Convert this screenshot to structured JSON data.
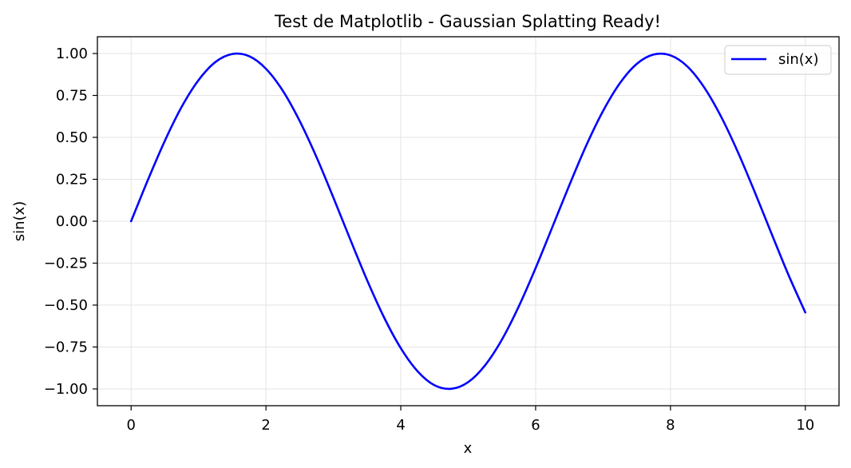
{
  "chart_data": {
    "type": "line",
    "title": "Test de Matplotlib - Gaussian Splatting Ready!",
    "xlabel": "x",
    "ylabel": "sin(x)",
    "xlim": [
      -0.5,
      10.5
    ],
    "ylim": [
      -1.1,
      1.1
    ],
    "xticks": [
      0,
      2,
      4,
      6,
      8,
      10
    ],
    "xtick_labels": [
      "0",
      "2",
      "4",
      "6",
      "8",
      "10"
    ],
    "yticks": [
      -1.0,
      -0.75,
      -0.5,
      -0.25,
      0.0,
      0.25,
      0.5,
      0.75,
      1.0
    ],
    "ytick_labels": [
      "−1.00",
      "−0.75",
      "−0.50",
      "−0.25",
      "0.00",
      "0.25",
      "0.50",
      "0.75",
      "1.00"
    ],
    "grid": true,
    "legend_position": "top-right",
    "series": [
      {
        "name": "sin(x)",
        "color": "#0000ff",
        "x": [
          0,
          0.25,
          0.5,
          0.75,
          1.0,
          1.25,
          1.5,
          1.75,
          2.0,
          2.25,
          2.5,
          2.75,
          3.0,
          3.25,
          3.5,
          3.75,
          4.0,
          4.25,
          4.5,
          4.75,
          5.0,
          5.25,
          5.5,
          5.75,
          6.0,
          6.25,
          6.5,
          6.75,
          7.0,
          7.25,
          7.5,
          7.75,
          8.0,
          8.25,
          8.5,
          8.75,
          9.0,
          9.25,
          9.5,
          9.75,
          10.0
        ],
        "y": [
          0.0,
          0.247,
          0.479,
          0.682,
          0.841,
          0.949,
          0.997,
          0.984,
          0.909,
          0.778,
          0.598,
          0.382,
          0.141,
          -0.108,
          -0.351,
          -0.572,
          -0.757,
          -0.895,
          -0.978,
          -0.999,
          -0.959,
          -0.859,
          -0.706,
          -0.508,
          -0.279,
          -0.033,
          0.215,
          0.451,
          0.657,
          0.823,
          0.938,
          0.994,
          0.989,
          0.923,
          0.798,
          0.624,
          0.412,
          0.174,
          -0.075,
          -0.32,
          -0.544
        ]
      }
    ]
  }
}
